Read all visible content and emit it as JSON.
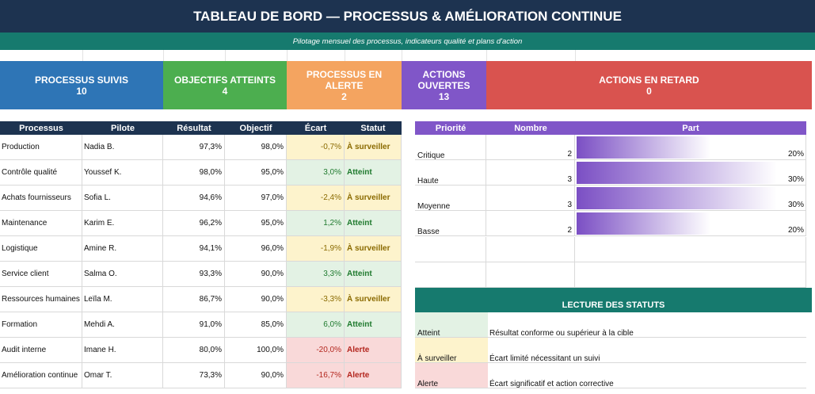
{
  "title": "TABLEAU DE BORD — PROCESSUS & AMÉLIORATION CONTINUE",
  "subtitle": "Pilotage mensuel des processus, indicateurs qualité et plans d'action",
  "kpis": [
    {
      "label": "PROCESSUS SUIVIS",
      "value": "10",
      "color": "#2e75b6"
    },
    {
      "label": "OBJECTIFS ATTEINTS",
      "value": "4",
      "color": "#4cae4f"
    },
    {
      "label": "PROCESSUS EN ALERTE",
      "value": "2",
      "color": "#f4a460"
    },
    {
      "label": "ACTIONS OUVERTES",
      "value": "13",
      "color": "#8056c8"
    },
    {
      "label": "ACTIONS EN RETARD",
      "value": "0",
      "color": "#d9534f"
    }
  ],
  "table": {
    "headers": [
      "Processus",
      "Pilote",
      "Résultat",
      "Objectif",
      "Écart",
      "Statut"
    ],
    "rows": [
      {
        "processus": "Production",
        "pilote": "Nadia B.",
        "resultat": "97,3%",
        "objectif": "98,0%",
        "ecart": "-0,7%",
        "statut": "À surveiller",
        "level": "warn"
      },
      {
        "processus": "Contrôle qualité",
        "pilote": "Youssef K.",
        "resultat": "98,0%",
        "objectif": "95,0%",
        "ecart": "3,0%",
        "statut": "Atteint",
        "level": "ok"
      },
      {
        "processus": "Achats fournisseurs",
        "pilote": "Sofia L.",
        "resultat": "94,6%",
        "objectif": "97,0%",
        "ecart": "-2,4%",
        "statut": "À surveiller",
        "level": "warn"
      },
      {
        "processus": "Maintenance",
        "pilote": "Karim E.",
        "resultat": "96,2%",
        "objectif": "95,0%",
        "ecart": "1,2%",
        "statut": "Atteint",
        "level": "ok"
      },
      {
        "processus": "Logistique",
        "pilote": "Amine R.",
        "resultat": "94,1%",
        "objectif": "96,0%",
        "ecart": "-1,9%",
        "statut": "À surveiller",
        "level": "warn"
      },
      {
        "processus": "Service client",
        "pilote": "Salma O.",
        "resultat": "93,3%",
        "objectif": "90,0%",
        "ecart": "3,3%",
        "statut": "Atteint",
        "level": "ok"
      },
      {
        "processus": "Ressources humaines",
        "pilote": "Leïla M.",
        "resultat": "86,7%",
        "objectif": "90,0%",
        "ecart": "-3,3%",
        "statut": "À surveiller",
        "level": "warn"
      },
      {
        "processus": "Formation",
        "pilote": "Mehdi A.",
        "resultat": "91,0%",
        "objectif": "85,0%",
        "ecart": "6,0%",
        "statut": "Atteint",
        "level": "ok"
      },
      {
        "processus": "Audit interne",
        "pilote": "Imane H.",
        "resultat": "80,0%",
        "objectif": "100,0%",
        "ecart": "-20,0%",
        "statut": "Alerte",
        "level": "bad"
      },
      {
        "processus": "Amélioration continue",
        "pilote": "Omar T.",
        "resultat": "73,3%",
        "objectif": "90,0%",
        "ecart": "-16,7%",
        "statut": "Alerte",
        "level": "bad"
      }
    ]
  },
  "priorities": {
    "headers": [
      "Priorité",
      "Nombre",
      "Part"
    ],
    "rows": [
      {
        "label": "Critique",
        "count": "2",
        "part": "20%",
        "fraction": 0.2
      },
      {
        "label": "Haute",
        "count": "3",
        "part": "30%",
        "fraction": 0.3
      },
      {
        "label": "Moyenne",
        "count": "3",
        "part": "30%",
        "fraction": 0.3
      },
      {
        "label": "Basse",
        "count": "2",
        "part": "20%",
        "fraction": 0.2
      }
    ]
  },
  "legend": {
    "title": "LECTURE DES STATUTS",
    "rows": [
      {
        "status": "Atteint",
        "desc": "Résultat conforme ou supérieur à la cible",
        "color": "#e3f2e4"
      },
      {
        "status": "À surveiller",
        "desc": "Écart limité nécessitant un suivi",
        "color": "#fdf3cc"
      },
      {
        "status": "Alerte",
        "desc": "Écart significatif et action corrective",
        "color": "#f9d9d9"
      }
    ]
  }
}
